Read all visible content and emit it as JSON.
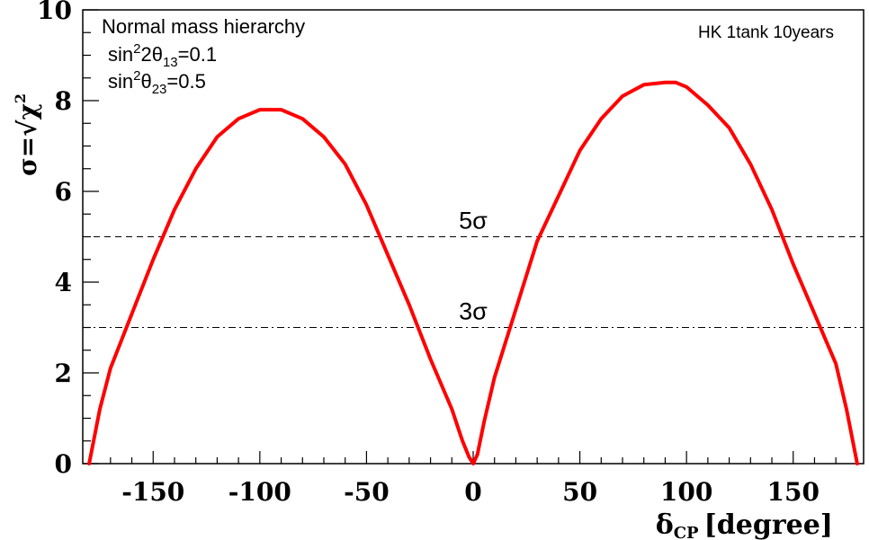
{
  "chart_data": {
    "type": "line",
    "xlabel_main": "δ",
    "xlabel_sub": "CP",
    "xlabel_unit": "[degree]",
    "ylabel_text": "σ=√χ",
    "ylabel_sup": "2",
    "xlim": [
      -183,
      183
    ],
    "ylim": [
      0,
      10
    ],
    "x_ticks": [
      -150,
      -100,
      -50,
      0,
      50,
      100,
      150
    ],
    "y_ticks": [
      0,
      2,
      4,
      6,
      8,
      10
    ],
    "legend": {
      "line1": "Normal mass hierarchy",
      "line2": {
        "pre": "sin",
        "sup": "2",
        "mid": "2θ",
        "sub": "13",
        "post": "=0.1"
      },
      "line3": {
        "pre": "sin",
        "sup": "2",
        "mid": "θ",
        "sub": "23",
        "post": "=0.5"
      }
    },
    "corner_label": "HK 1tank 10years",
    "reference_lines": [
      {
        "y": 5,
        "label": "5σ",
        "style": "dashed"
      },
      {
        "y": 3,
        "label": "3σ",
        "style": "dashdot"
      }
    ],
    "series": [
      {
        "color": "#ff0000",
        "x": [
          -180,
          -175,
          -170,
          -160,
          -150,
          -140,
          -130,
          -120,
          -110,
          -100,
          -90,
          -80,
          -70,
          -60,
          -50,
          -40,
          -30,
          -20,
          -10,
          -5,
          -2,
          0,
          2,
          5,
          10,
          20,
          30,
          40,
          50,
          60,
          70,
          80,
          90,
          95,
          100,
          110,
          120,
          130,
          140,
          150,
          160,
          170,
          175,
          180
        ],
        "y": [
          0.0,
          1.2,
          2.1,
          3.3,
          4.5,
          5.6,
          6.5,
          7.2,
          7.6,
          7.8,
          7.8,
          7.6,
          7.2,
          6.6,
          5.7,
          4.6,
          3.5,
          2.3,
          1.2,
          0.5,
          0.15,
          0.0,
          0.2,
          0.9,
          1.9,
          3.4,
          4.9,
          5.9,
          6.9,
          7.6,
          8.1,
          8.35,
          8.4,
          8.4,
          8.3,
          7.9,
          7.4,
          6.6,
          5.6,
          4.4,
          3.3,
          2.2,
          1.2,
          0.0
        ]
      }
    ]
  }
}
